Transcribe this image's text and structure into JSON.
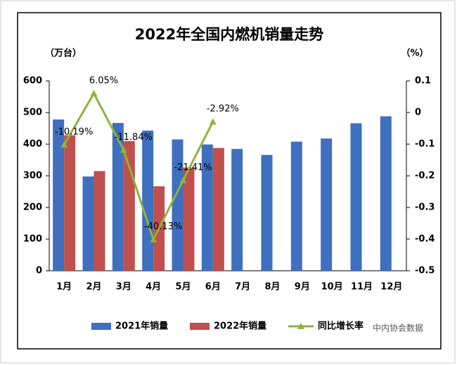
{
  "chart_data": {
    "type": "bar_line",
    "title": "2022年全国内燃机销量走势",
    "y_label": "（万台）",
    "y2_label": "（%）",
    "categories": [
      "1月",
      "2月",
      "3月",
      "4月",
      "5月",
      "6月",
      "7月",
      "8月",
      "9月",
      "10月",
      "11月",
      "12月"
    ],
    "series": [
      {
        "name": "2021年销量",
        "color": "#3f6fbf",
        "type": "bar",
        "values": [
          478,
          298,
          467,
          443,
          415,
          399,
          385,
          366,
          408,
          418,
          466,
          488
        ]
      },
      {
        "name": "2022年销量",
        "color": "#c0504d",
        "type": "bar",
        "values": [
          428,
          315,
          410,
          267,
          326,
          388,
          null,
          null,
          null,
          null,
          null,
          null
        ]
      },
      {
        "name": "同比增长率",
        "color": "#8db43c",
        "type": "line",
        "axis": "y2",
        "values": [
          -0.1019,
          0.0605,
          -0.1184,
          -0.4013,
          -0.2141,
          -0.0292,
          null,
          null,
          null,
          null,
          null,
          null
        ],
        "value_labels": [
          "-10.19%",
          "6.05%",
          "-11.84%",
          "-40.13%",
          "-21.41%",
          "-2.92%",
          null,
          null,
          null,
          null,
          null,
          null
        ]
      }
    ],
    "ylim": [
      0,
      600
    ],
    "yticks": [
      0,
      100,
      200,
      300,
      400,
      500,
      600
    ],
    "y2lim": [
      -0.5,
      0.1
    ],
    "y2ticks": [
      -0.5,
      -0.4,
      -0.3,
      -0.2,
      -0.1,
      0,
      0.1
    ],
    "legend": "bottom",
    "watermark": "中内协会数据"
  }
}
